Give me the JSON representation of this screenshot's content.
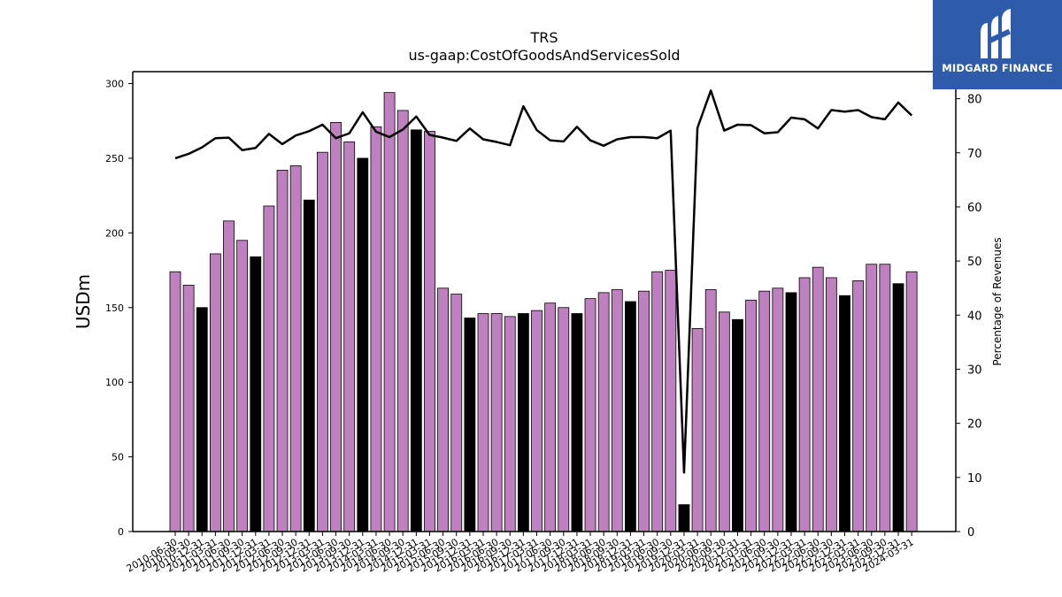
{
  "chart_data": {
    "type": "bar",
    "title": "TRS",
    "subtitle": "us-gaap:CostOfGoodsAndServicesSold",
    "ylabel": "USDm",
    "y2label": "Percentage of Revenues",
    "ylim": [
      0,
      308
    ],
    "y2lim": [
      0,
      85
    ],
    "yticks": [
      "0",
      "50",
      "100",
      "150",
      "200",
      "250",
      "300"
    ],
    "y2ticks": [
      "0",
      "10",
      "20",
      "30",
      "40",
      "50",
      "60",
      "70",
      "80"
    ],
    "colors": {
      "quarter": "#bf80bf",
      "fiscal_year": "#000000",
      "line": "#000000"
    },
    "categories": [
      "2010-06-30",
      "2010-09-30",
      "2010-12-31",
      "2011-03-31",
      "2011-06-30",
      "2011-09-30",
      "2011-12-31",
      "2012-03-31",
      "2012-06-30",
      "2012-09-30",
      "2012-12-31",
      "2013-03-31",
      "2013-06-30",
      "2013-09-30",
      "2013-12-31",
      "2014-03-31",
      "2014-06-30",
      "2014-09-30",
      "2014-12-31",
      "2015-03-31",
      "2015-06-30",
      "2015-09-30",
      "2015-12-31",
      "2016-03-31",
      "2016-06-30",
      "2016-09-30",
      "2016-12-31",
      "2017-03-31",
      "2017-06-30",
      "2017-09-30",
      "2017-12-31",
      "2018-03-31",
      "2018-06-30",
      "2018-09-30",
      "2018-12-31",
      "2019-03-31",
      "2019-06-30",
      "2019-09-30",
      "2019-12-31",
      "2020-03-31",
      "2020-06-30",
      "2020-09-30",
      "2020-12-31",
      "2021-03-31",
      "2021-06-30",
      "2021-09-30",
      "2021-12-31",
      "2022-03-31",
      "2022-06-30",
      "2022-09-30",
      "2022-12-31",
      "2023-03-31",
      "2023-06-30",
      "2023-09-30",
      "2023-12-31",
      "2024-03-31"
    ],
    "series": [
      {
        "name": "",
        "type": "bar",
        "values": [
          174,
          165,
          150,
          186,
          208,
          195,
          184,
          218,
          242,
          245,
          222,
          254,
          274,
          261,
          250,
          271,
          294,
          282,
          269,
          268,
          163,
          159,
          143,
          146,
          146,
          144,
          146,
          148,
          153,
          150,
          146,
          156,
          160,
          162,
          154,
          161,
          174,
          175,
          18,
          136,
          162,
          147,
          142,
          155,
          161,
          163,
          160,
          170,
          177,
          170,
          158,
          168,
          179,
          179,
          166,
          174
        ],
        "fiscal_year_end": [
          false,
          false,
          true,
          false,
          false,
          false,
          true,
          false,
          false,
          false,
          true,
          false,
          false,
          false,
          true,
          false,
          false,
          false,
          true,
          false,
          false,
          false,
          true,
          false,
          false,
          false,
          true,
          false,
          false,
          false,
          true,
          false,
          false,
          false,
          true,
          false,
          false,
          false,
          true,
          false,
          false,
          false,
          true,
          false,
          false,
          false,
          true,
          false,
          false,
          false,
          true,
          false,
          false,
          false,
          true,
          false
        ]
      },
      {
        "name": "",
        "type": "line",
        "axis": "right",
        "values": [
          69.0,
          69.8,
          71.0,
          72.7,
          72.8,
          70.5,
          70.9,
          73.5,
          71.6,
          73.2,
          74.0,
          75.2,
          72.7,
          73.6,
          77.5,
          73.9,
          72.9,
          74.3,
          76.7,
          73.3,
          72.8,
          72.2,
          74.5,
          72.5,
          72.0,
          71.4,
          78.6,
          74.2,
          72.3,
          72.1,
          74.8,
          72.3,
          71.3,
          72.5,
          72.9,
          72.9,
          72.7,
          74.1,
          10.9,
          74.6,
          81.5,
          74.1,
          75.2,
          75.1,
          73.6,
          73.8,
          76.5,
          76.2,
          74.5,
          77.9,
          77.6,
          77.9,
          76.6,
          76.2,
          79.3,
          76.9
        ]
      }
    ]
  },
  "logo": {
    "text": "MIDGARD FINANCE",
    "icon": "midgard-m-icon"
  }
}
